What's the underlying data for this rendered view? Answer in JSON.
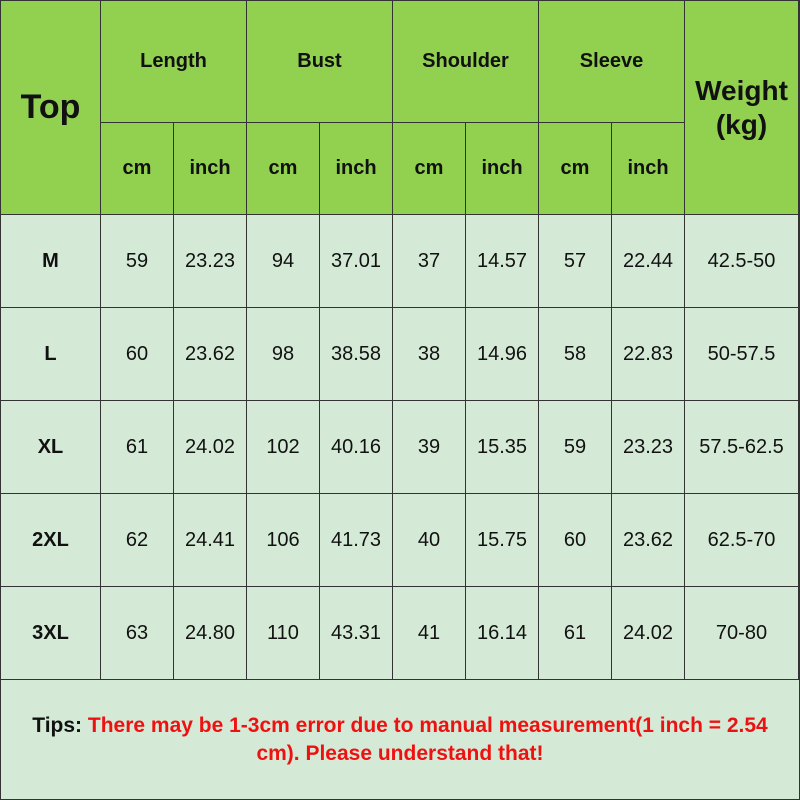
{
  "table": {
    "corner": "Top",
    "groups": [
      "Length",
      "Bust",
      "Shoulder",
      "Sleeve"
    ],
    "units": [
      "cm",
      "inch"
    ],
    "weight_header": [
      "Weight",
      "(kg)"
    ],
    "rows": [
      {
        "size": "M",
        "values": [
          "59",
          "23.23",
          "94",
          "37.01",
          "37",
          "14.57",
          "57",
          "22.44",
          "42.5-50"
        ]
      },
      {
        "size": "L",
        "values": [
          "60",
          "23.62",
          "98",
          "38.58",
          "38",
          "14.96",
          "58",
          "22.83",
          "50-57.5"
        ]
      },
      {
        "size": "XL",
        "values": [
          "61",
          "24.02",
          "102",
          "40.16",
          "39",
          "15.35",
          "59",
          "23.23",
          "57.5-62.5"
        ]
      },
      {
        "size": "2XL",
        "values": [
          "62",
          "24.41",
          "106",
          "41.73",
          "40",
          "15.75",
          "60",
          "23.62",
          "62.5-70"
        ]
      },
      {
        "size": "3XL",
        "values": [
          "63",
          "24.80",
          "110",
          "43.31",
          "41",
          "16.14",
          "61",
          "24.02",
          "70-80"
        ]
      }
    ]
  },
  "tips": {
    "label": "Tips:",
    "text": "There may be 1-3cm error due to manual measurement(1 inch = 2.54 cm). Please understand that!"
  },
  "colors": {
    "header": "#92d050",
    "body": "#d5ead6",
    "tip_text": "#ee1111"
  }
}
